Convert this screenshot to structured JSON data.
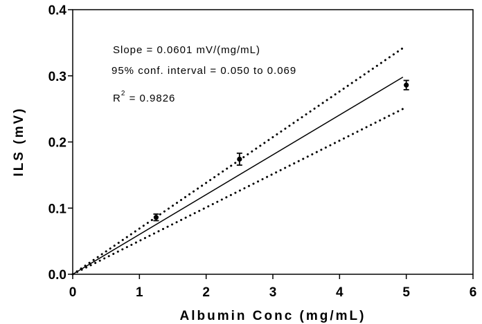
{
  "chart_data": {
    "type": "scatter",
    "xlabel": "Albumin Conc (mg/mL)",
    "ylabel": "ILS (mV)",
    "xlim": [
      0,
      6
    ],
    "ylim": [
      0,
      0.4
    ],
    "xticks": [
      "0",
      "1",
      "2",
      "3",
      "4",
      "5",
      "6"
    ],
    "yticks": [
      "0.0",
      "0.1",
      "0.2",
      "0.3",
      "0.4"
    ],
    "grid": false,
    "points": [
      {
        "x": 1.25,
        "y": 0.086,
        "err": 0.005
      },
      {
        "x": 2.5,
        "y": 0.174,
        "err": 0.009
      },
      {
        "x": 5.0,
        "y": 0.286,
        "err": 0.007
      }
    ],
    "fit_line": {
      "x": [
        0,
        4.95
      ],
      "y": [
        0,
        0.298
      ],
      "style": "solid"
    },
    "confidence_bands": [
      {
        "x": [
          0,
          4.95
        ],
        "y": [
          0,
          0.342
        ],
        "style": "dotted"
      },
      {
        "x": [
          0,
          4.95
        ],
        "y": [
          0,
          0.25
        ],
        "style": "dotted"
      }
    ],
    "annotations": {
      "slope": "Slope = 0.0601 mV/(mg/mL)",
      "ci": "95% conf. interval = 0.050 to 0.069",
      "r2_prefix": "R",
      "r2_sup": "2",
      "r2_value": " = 0.9826"
    }
  }
}
